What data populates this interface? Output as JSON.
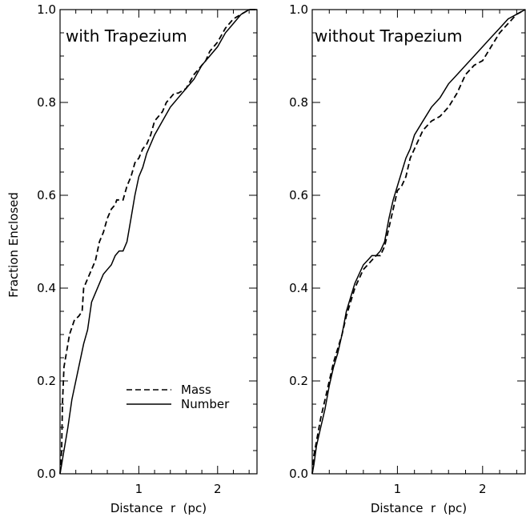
{
  "ylabel": "Fraction Enclosed",
  "chart_data": [
    {
      "type": "line",
      "title": "with Trapezium",
      "xlabel": "Distance  r  (pc)",
      "ylabel": "Fraction Enclosed",
      "xlim": [
        0,
        2.5
      ],
      "ylim": [
        0,
        1
      ],
      "xticks": [
        "1",
        "2"
      ],
      "yticks": [
        "0.0",
        "0.2",
        "0.4",
        "0.6",
        "0.8",
        "1.0"
      ],
      "legend": {
        "placement": "lower-right"
      },
      "series": [
        {
          "name": "Mass",
          "style": "dashed",
          "x": [
            0,
            0.02,
            0.03,
            0.05,
            0.08,
            0.12,
            0.18,
            0.24,
            0.28,
            0.3,
            0.35,
            0.4,
            0.45,
            0.5,
            0.55,
            0.6,
            0.65,
            0.7,
            0.72,
            0.8,
            0.85,
            0.9,
            0.95,
            1.0,
            1.05,
            1.1,
            1.15,
            1.2,
            1.3,
            1.35,
            1.4,
            1.45,
            1.5,
            1.6,
            1.7,
            1.8,
            1.85,
            1.9,
            2.0,
            2.1,
            2.2,
            2.3,
            2.4,
            2.5
          ],
          "y": [
            0,
            0.05,
            0.15,
            0.23,
            0.26,
            0.3,
            0.33,
            0.34,
            0.35,
            0.4,
            0.42,
            0.44,
            0.46,
            0.5,
            0.52,
            0.55,
            0.57,
            0.58,
            0.59,
            0.59,
            0.62,
            0.64,
            0.67,
            0.68,
            0.7,
            0.71,
            0.73,
            0.76,
            0.78,
            0.8,
            0.81,
            0.82,
            0.82,
            0.83,
            0.86,
            0.88,
            0.89,
            0.91,
            0.93,
            0.96,
            0.98,
            0.99,
            1.0,
            1.0
          ]
        },
        {
          "name": "Number",
          "style": "solid",
          "x": [
            0,
            0.02,
            0.05,
            0.1,
            0.15,
            0.2,
            0.25,
            0.3,
            0.35,
            0.4,
            0.45,
            0.5,
            0.55,
            0.6,
            0.65,
            0.7,
            0.75,
            0.8,
            0.85,
            0.9,
            0.95,
            1.0,
            1.05,
            1.1,
            1.2,
            1.3,
            1.4,
            1.5,
            1.6,
            1.7,
            1.8,
            1.9,
            2.0,
            2.1,
            2.2,
            2.3,
            2.4,
            2.5
          ],
          "y": [
            0,
            0.02,
            0.05,
            0.1,
            0.16,
            0.2,
            0.24,
            0.28,
            0.31,
            0.37,
            0.39,
            0.41,
            0.43,
            0.44,
            0.45,
            0.47,
            0.48,
            0.48,
            0.5,
            0.55,
            0.6,
            0.64,
            0.66,
            0.69,
            0.73,
            0.76,
            0.79,
            0.81,
            0.83,
            0.85,
            0.88,
            0.9,
            0.92,
            0.95,
            0.97,
            0.99,
            1.0,
            1.0
          ]
        }
      ]
    },
    {
      "type": "line",
      "title": "without Trapezium",
      "xlabel": "Distance  r  (pc)",
      "xlim": [
        0,
        2.5
      ],
      "ylim": [
        0,
        1
      ],
      "xticks": [
        "1",
        "2"
      ],
      "yticks": [
        "0.0",
        "0.2",
        "0.4",
        "0.6",
        "0.8",
        "1.0"
      ],
      "series": [
        {
          "name": "Mass",
          "style": "dashed",
          "x": [
            0,
            0.02,
            0.05,
            0.1,
            0.15,
            0.2,
            0.25,
            0.3,
            0.35,
            0.4,
            0.45,
            0.5,
            0.55,
            0.6,
            0.65,
            0.7,
            0.75,
            0.8,
            0.85,
            0.9,
            0.95,
            1.0,
            1.05,
            1.1,
            1.15,
            1.2,
            1.3,
            1.4,
            1.5,
            1.6,
            1.7,
            1.8,
            1.9,
            2.0,
            2.1,
            2.2,
            2.3,
            2.4,
            2.5
          ],
          "y": [
            0,
            0.04,
            0.07,
            0.12,
            0.16,
            0.2,
            0.24,
            0.27,
            0.3,
            0.34,
            0.37,
            0.4,
            0.42,
            0.44,
            0.45,
            0.46,
            0.47,
            0.47,
            0.49,
            0.53,
            0.57,
            0.61,
            0.62,
            0.64,
            0.68,
            0.7,
            0.74,
            0.76,
            0.77,
            0.79,
            0.82,
            0.86,
            0.88,
            0.89,
            0.92,
            0.95,
            0.97,
            0.99,
            1.0
          ]
        },
        {
          "name": "Number",
          "style": "solid",
          "x": [
            0,
            0.02,
            0.05,
            0.1,
            0.15,
            0.2,
            0.25,
            0.3,
            0.35,
            0.4,
            0.45,
            0.5,
            0.55,
            0.6,
            0.65,
            0.7,
            0.75,
            0.8,
            0.85,
            0.9,
            0.95,
            1.0,
            1.05,
            1.1,
            1.15,
            1.2,
            1.3,
            1.4,
            1.5,
            1.6,
            1.7,
            1.8,
            1.9,
            2.0,
            2.1,
            2.2,
            2.3,
            2.4,
            2.5
          ],
          "y": [
            0,
            0.02,
            0.06,
            0.1,
            0.14,
            0.19,
            0.23,
            0.26,
            0.3,
            0.35,
            0.38,
            0.41,
            0.43,
            0.45,
            0.46,
            0.47,
            0.47,
            0.48,
            0.5,
            0.55,
            0.59,
            0.62,
            0.65,
            0.68,
            0.7,
            0.73,
            0.76,
            0.79,
            0.81,
            0.84,
            0.86,
            0.88,
            0.9,
            0.92,
            0.94,
            0.96,
            0.98,
            0.99,
            1.0
          ]
        }
      ]
    }
  ]
}
